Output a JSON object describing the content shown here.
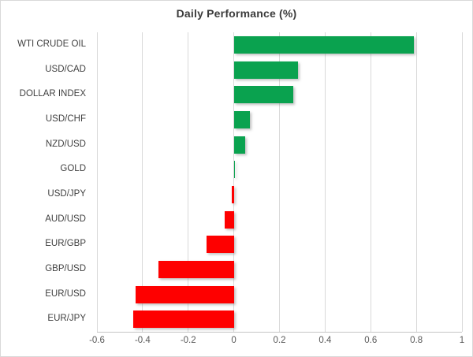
{
  "chart_data": {
    "type": "bar",
    "orientation": "horizontal",
    "title": "Daily Performance (%)",
    "categories": [
      "WTI CRUDE OIL",
      "USD/CAD",
      "DOLLAR INDEX",
      "USD/CHF",
      "NZD/USD",
      "GOLD",
      "USD/JPY",
      "AUD/USD",
      "EUR/GBP",
      "GBP/USD",
      "EUR/USD",
      "EUR/JPY"
    ],
    "values": [
      0.79,
      0.28,
      0.26,
      0.07,
      0.05,
      0.0,
      -0.01,
      -0.04,
      -0.12,
      -0.33,
      -0.43,
      -0.44
    ],
    "xlabel": "",
    "ylabel": "",
    "xlim": [
      -0.6,
      1.0
    ],
    "x_ticks": [
      -0.6,
      -0.4,
      -0.2,
      0,
      0.2,
      0.4,
      0.6,
      0.8,
      1
    ],
    "x_tick_labels": [
      "-0.6",
      "-0.4",
      "-0.2",
      "0",
      "0.2",
      "0.4",
      "0.6",
      "0.8",
      "1"
    ],
    "grid": "vertical",
    "legend": "none",
    "colors": {
      "positive": "#0aa24f",
      "negative": "#fe0000",
      "gridline": "#d9d9d9",
      "title_text": "#3b3b3b",
      "label_text": "#404040",
      "tick_text": "#595959"
    }
  }
}
